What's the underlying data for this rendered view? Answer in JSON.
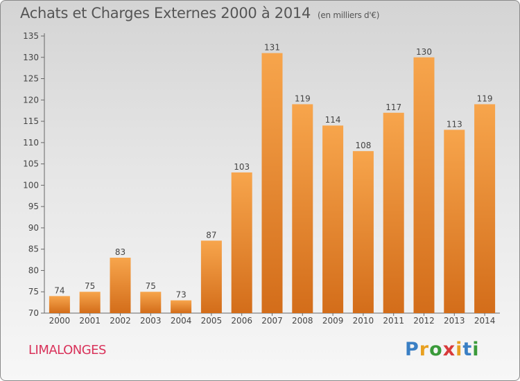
{
  "header": {
    "title": "Achats et Charges Externes 2000 à 2014",
    "unit": "(en milliers d'€)"
  },
  "footer": {
    "commune": "LIMALONGES",
    "logo_letters": [
      "P",
      "r",
      "o",
      "x",
      "i",
      "t",
      "i"
    ],
    "logo_colors": [
      "#3a7fc4",
      "#e8a020",
      "#3a9a3a",
      "#d83a3a",
      "#e8a020",
      "#3a7fc4",
      "#3a9a3a"
    ]
  },
  "chart_data": {
    "type": "bar",
    "title": "Achats et Charges Externes 2000 à 2014",
    "categories": [
      "2000",
      "2001",
      "2002",
      "2003",
      "2004",
      "2005",
      "2006",
      "2007",
      "2008",
      "2009",
      "2010",
      "2011",
      "2012",
      "2013",
      "2014"
    ],
    "values": [
      74,
      75,
      83,
      75,
      73,
      87,
      103,
      131,
      119,
      114,
      108,
      117,
      130,
      113,
      119
    ],
    "ylim": [
      70,
      135
    ],
    "yticks": [
      70,
      75,
      80,
      85,
      90,
      95,
      100,
      105,
      110,
      115,
      120,
      125,
      130,
      135
    ],
    "grid": false,
    "bar_color_top": "#f7a54c",
    "bar_color_bottom": "#d36d1a"
  }
}
